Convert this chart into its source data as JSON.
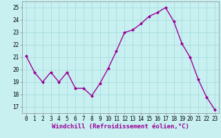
{
  "x": [
    0,
    1,
    2,
    3,
    4,
    5,
    6,
    7,
    8,
    9,
    10,
    11,
    12,
    13,
    14,
    15,
    16,
    17,
    18,
    19,
    20,
    21,
    22,
    23
  ],
  "y": [
    21.1,
    19.8,
    19.0,
    19.8,
    19.0,
    19.8,
    18.5,
    18.5,
    17.9,
    18.9,
    20.1,
    21.5,
    23.0,
    23.2,
    23.7,
    24.3,
    24.6,
    25.0,
    23.9,
    22.1,
    21.0,
    19.2,
    17.8,
    16.8
  ],
  "line_color": "#990099",
  "marker": "D",
  "marker_size": 2.0,
  "linewidth": 1.0,
  "xlabel": "Windchill (Refroidissement éolien,°C)",
  "ylim": [
    16.5,
    25.5
  ],
  "yticks": [
    17,
    18,
    19,
    20,
    21,
    22,
    23,
    24,
    25
  ],
  "xtick_labels": [
    "0",
    "1",
    "2",
    "3",
    "4",
    "5",
    "6",
    "7",
    "8",
    "9",
    "10",
    "11",
    "12",
    "13",
    "14",
    "15",
    "16",
    "17",
    "18",
    "19",
    "20",
    "21",
    "22",
    "23"
  ],
  "background_color": "#c8f0f0",
  "grid_color": "#a0d8d8",
  "xlabel_fontsize": 6.5,
  "tick_fontsize": 5.5
}
